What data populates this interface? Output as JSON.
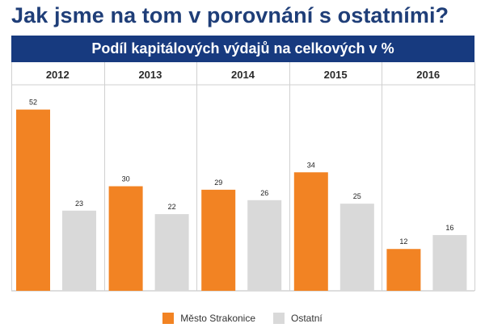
{
  "page": {
    "title": "Jak jsme na tom v porovnání s ostatními?"
  },
  "chart_data": {
    "type": "bar",
    "title": "Podíl kapitálových výdajů na celkových v %",
    "categories": [
      "2012",
      "2013",
      "2014",
      "2015",
      "2016"
    ],
    "series": [
      {
        "name": "Město Strakonice",
        "values": [
          52,
          30,
          29,
          34,
          12
        ],
        "color": "#f28323"
      },
      {
        "name": "Ostatní",
        "values": [
          23,
          22,
          26,
          25,
          16
        ],
        "color": "#d9d9d9"
      }
    ],
    "ylim": [
      0,
      54
    ],
    "xlabel": "",
    "ylabel": "",
    "legend_position": "bottom",
    "grid": false
  }
}
